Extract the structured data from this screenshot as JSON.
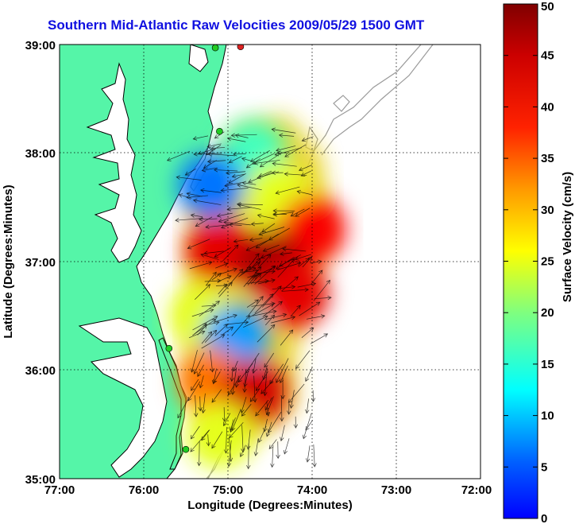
{
  "title": "Southern Mid-Atlantic Raw Velocities 2009/05/29 1500 GMT",
  "axes": {
    "xlabel": "Longitude (Degrees:Minutes)",
    "ylabel": "Latitude (Degrees:Minutes)",
    "xticks": [
      "77:00",
      "76:00",
      "75:00",
      "74:00",
      "73:00",
      "72:00"
    ],
    "yticks": [
      "39:00",
      "38:00",
      "37:00",
      "36:00",
      "35:00"
    ],
    "xlim": [
      -77,
      -72
    ],
    "ylim": [
      35,
      39
    ],
    "grid": true
  },
  "colorbar": {
    "label": "Surface Velocity (cm/s)",
    "ticks": [
      "0",
      "5",
      "10",
      "15",
      "20",
      "25",
      "30",
      "35",
      "40",
      "45",
      "50"
    ],
    "range": [
      0,
      50
    ],
    "colormap": "jet"
  },
  "colors": {
    "land": "#55f5a8",
    "title": "#1010e0",
    "coast": "#000000",
    "bathymetry": "#9a9a9a",
    "station_green": "#22cc22",
    "station_red": "#dd2222"
  },
  "chart_data": {
    "type": "heatmap",
    "description_units": "cm/s",
    "field_regions": [
      {
        "lon": -74.7,
        "lat": 38.0,
        "speed": 22
      },
      {
        "lon": -75.2,
        "lat": 37.7,
        "speed": 12
      },
      {
        "lon": -74.4,
        "lat": 37.6,
        "speed": 30
      },
      {
        "lon": -74.0,
        "lat": 37.3,
        "speed": 44
      },
      {
        "lon": -75.1,
        "lat": 37.1,
        "speed": 45
      },
      {
        "lon": -74.5,
        "lat": 37.0,
        "speed": 48
      },
      {
        "lon": -75.3,
        "lat": 36.5,
        "speed": 30
      },
      {
        "lon": -74.9,
        "lat": 36.3,
        "speed": 14
      },
      {
        "lon": -74.2,
        "lat": 36.7,
        "speed": 45
      },
      {
        "lon": -75.2,
        "lat": 35.9,
        "speed": 38
      },
      {
        "lon": -74.7,
        "lat": 35.8,
        "speed": 46
      },
      {
        "lon": -75.1,
        "lat": 35.4,
        "speed": 30
      }
    ],
    "stations": [
      {
        "lon": -74.85,
        "lat": 38.98,
        "color": "red"
      },
      {
        "lon": -75.15,
        "lat": 38.97,
        "color": "green"
      },
      {
        "lon": -75.1,
        "lat": 38.2,
        "color": "green"
      },
      {
        "lon": -75.7,
        "lat": 36.2,
        "color": "green"
      },
      {
        "lon": -75.5,
        "lat": 35.27,
        "color": "green"
      }
    ]
  }
}
